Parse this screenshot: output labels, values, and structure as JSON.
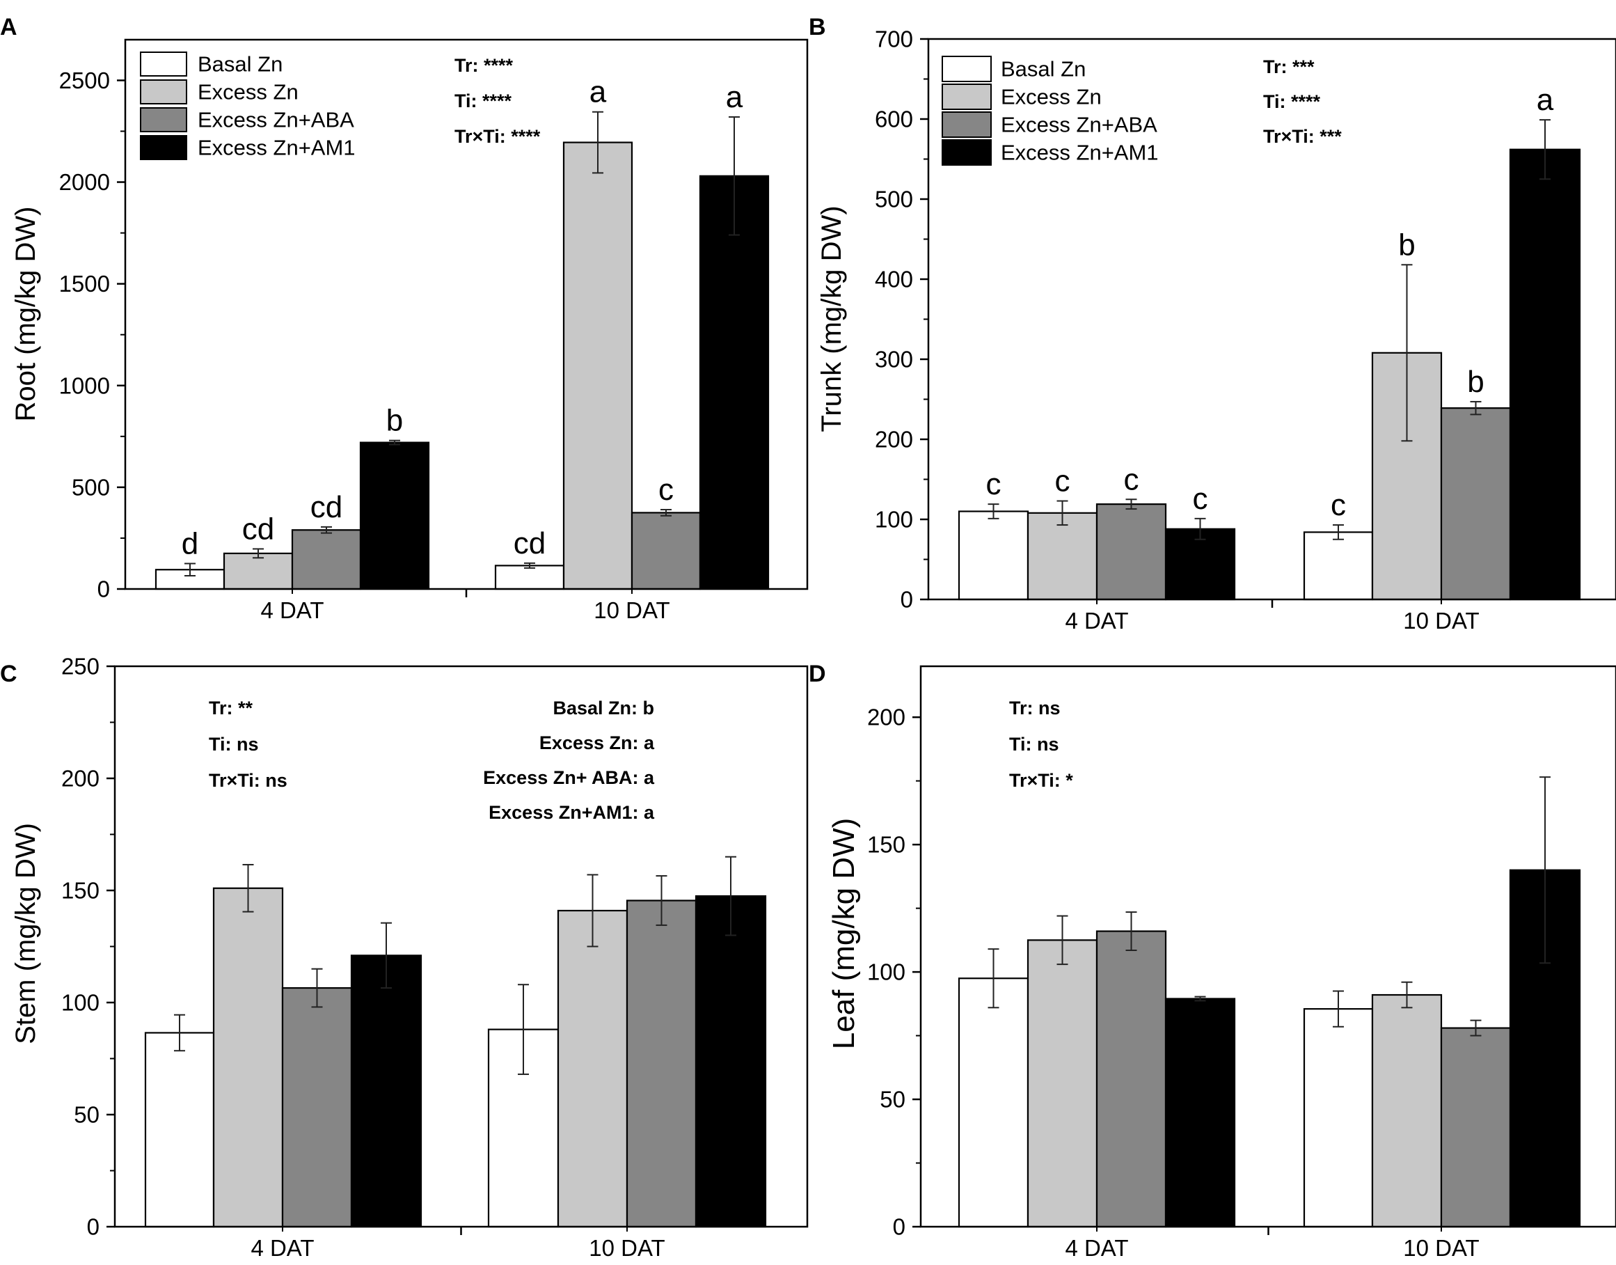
{
  "colors": {
    "basal": "#ffffff",
    "excess": "#c8c8c8",
    "aba": "#868686",
    "am1": "#000000"
  },
  "chart_data": [
    {
      "panel": "A",
      "type": "bar",
      "ylabel": "Root (mg/kg DW)",
      "ylim": [
        0,
        2700
      ],
      "yticks": [
        0,
        500,
        1000,
        1500,
        2000,
        2500
      ],
      "categories": [
        "4 DAT",
        "10 DAT"
      ],
      "legend": [
        "Basal Zn",
        "Excess Zn",
        "Excess Zn+ABA",
        "Excess Zn+AM1"
      ],
      "legend_position": "top-left",
      "stats_right": [
        "Tr: ****",
        "Ti: ****",
        "Tr×Ti: ****"
      ],
      "series": [
        {
          "name": "Basal Zn",
          "values": [
            95,
            115
          ],
          "errors": [
            30,
            12
          ],
          "labels": [
            "d",
            "cd"
          ]
        },
        {
          "name": "Excess Zn",
          "values": [
            175,
            2195
          ],
          "errors": [
            22,
            150
          ],
          "labels": [
            "cd",
            "a"
          ]
        },
        {
          "name": "Excess Zn+ABA",
          "values": [
            290,
            375
          ],
          "errors": [
            15,
            15
          ],
          "labels": [
            "cd",
            "c"
          ]
        },
        {
          "name": "Excess Zn+AM1",
          "values": [
            720,
            2030
          ],
          "errors": [
            10,
            290
          ],
          "labels": [
            "b",
            "a"
          ]
        }
      ]
    },
    {
      "panel": "B",
      "type": "bar",
      "ylabel": "Trunk (mg/kg DW)",
      "ylim": [
        0,
        700
      ],
      "yticks": [
        0,
        100,
        200,
        300,
        400,
        500,
        600,
        700
      ],
      "categories": [
        "4 DAT",
        "10 DAT"
      ],
      "legend": [
        "Basal Zn",
        "Excess Zn",
        "Excess Zn+ABA",
        "Excess Zn+AM1"
      ],
      "legend_position": "top-left",
      "stats_right": [
        "Tr: ***",
        "Ti: ****",
        "Tr×Ti: ***"
      ],
      "series": [
        {
          "name": "Basal Zn",
          "values": [
            110,
            84
          ],
          "errors": [
            9,
            9
          ],
          "labels": [
            "c",
            "c"
          ]
        },
        {
          "name": "Excess Zn",
          "values": [
            108,
            308
          ],
          "errors": [
            15,
            110
          ],
          "labels": [
            "c",
            "b"
          ]
        },
        {
          "name": "Excess Zn+ABA",
          "values": [
            119,
            239
          ],
          "errors": [
            6,
            8
          ],
          "labels": [
            "c",
            "b"
          ]
        },
        {
          "name": "Excess Zn+AM1",
          "values": [
            88,
            562
          ],
          "errors": [
            13,
            37
          ],
          "labels": [
            "c",
            "a"
          ]
        }
      ]
    },
    {
      "panel": "C",
      "type": "bar",
      "ylabel": "Stem (mg/kg DW)",
      "ylim": [
        0,
        250
      ],
      "yticks": [
        0,
        50,
        100,
        150,
        200,
        250
      ],
      "categories": [
        "4 DAT",
        "10 DAT"
      ],
      "stats_left": [
        "Tr: **",
        "Ti: ns",
        "Tr×Ti: ns"
      ],
      "stats_right": [
        "Basal Zn: b",
        "Excess Zn: a",
        "Excess Zn+ ABA: a",
        "Excess Zn+AM1: a"
      ],
      "series": [
        {
          "name": "Basal Zn",
          "values": [
            86.5,
            88
          ],
          "errors": [
            8,
            20
          ]
        },
        {
          "name": "Excess Zn",
          "values": [
            151,
            141
          ],
          "errors": [
            10.5,
            16
          ]
        },
        {
          "name": "Excess Zn+ABA",
          "values": [
            106.5,
            145.5
          ],
          "errors": [
            8.5,
            11
          ]
        },
        {
          "name": "Excess Zn+AM1",
          "values": [
            121,
            147.5
          ],
          "errors": [
            14.5,
            17.5
          ]
        }
      ]
    },
    {
      "panel": "D",
      "type": "bar",
      "ylabel": "Leaf (mg/kg DW)",
      "ylim": [
        0,
        220
      ],
      "yticks": [
        0,
        50,
        100,
        150,
        200
      ],
      "categories": [
        "4 DAT",
        "10 DAT"
      ],
      "stats_left": [
        "Tr: ns",
        "Ti: ns",
        "Tr×Ti: *"
      ],
      "series": [
        {
          "name": "Basal Zn",
          "values": [
            97.5,
            85.5
          ],
          "errors": [
            11.5,
            7
          ]
        },
        {
          "name": "Excess Zn",
          "values": [
            112.5,
            91
          ],
          "errors": [
            9.5,
            5
          ]
        },
        {
          "name": "Excess Zn+ABA",
          "values": [
            116,
            78
          ],
          "errors": [
            7.5,
            3
          ]
        },
        {
          "name": "Excess Zn+AM1",
          "values": [
            89.5,
            140
          ],
          "errors": [
            0.8,
            36.5
          ]
        }
      ]
    }
  ]
}
